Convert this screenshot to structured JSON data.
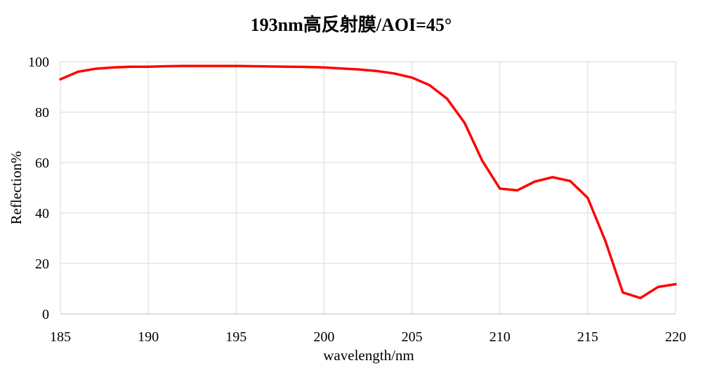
{
  "chart_data": {
    "type": "line",
    "title": "193nm高反射膜/AOI=45°",
    "xlabel": "wavelength/nm",
    "ylabel": "Reflection%",
    "xlim": [
      185,
      220
    ],
    "ylim": [
      0,
      100
    ],
    "xticks": [
      "185",
      "190",
      "195",
      "200",
      "205",
      "210",
      "215",
      "220"
    ],
    "yticks": [
      "0",
      "20",
      "40",
      "60",
      "80",
      "100"
    ],
    "grid": true,
    "legend": "none",
    "series": [
      {
        "color": "#ff0000",
        "x": [
          185,
          186,
          187,
          188,
          189,
          190,
          191,
          192,
          193,
          194,
          195,
          196,
          197,
          198,
          199,
          200,
          201,
          202,
          203,
          204,
          205,
          206,
          207,
          208,
          209,
          210,
          211,
          212,
          213,
          214,
          215,
          216,
          217,
          218,
          219,
          220
        ],
        "y": [
          93,
          96,
          97.2,
          97.7,
          98,
          98,
          98.2,
          98.3,
          98.3,
          98.3,
          98.3,
          98.2,
          98.1,
          98,
          97.9,
          97.7,
          97.3,
          96.9,
          96.3,
          95.3,
          93.7,
          90.7,
          85.3,
          75.7,
          60.7,
          49.7,
          49,
          52.5,
          54.2,
          52.7,
          46,
          29,
          8.5,
          6.3,
          10.7,
          11.8
        ]
      }
    ]
  }
}
